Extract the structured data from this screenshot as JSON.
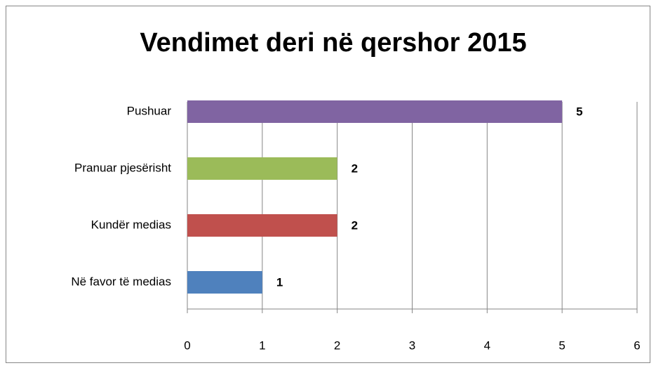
{
  "chart_data": {
    "type": "bar",
    "orientation": "horizontal",
    "title": "Vendimet deri në qershor 2015",
    "categories": [
      "Pushuar",
      "Pranuar pjesërisht",
      "Kundër medias",
      "Në favor të medias"
    ],
    "values": [
      5,
      2,
      2,
      1
    ],
    "colors": [
      "#8064a2",
      "#9bbb59",
      "#c0504d",
      "#4f81bd"
    ],
    "xlim": [
      0,
      6
    ],
    "xticks": [
      0,
      1,
      2,
      3,
      4,
      5,
      6
    ],
    "grid": true
  }
}
